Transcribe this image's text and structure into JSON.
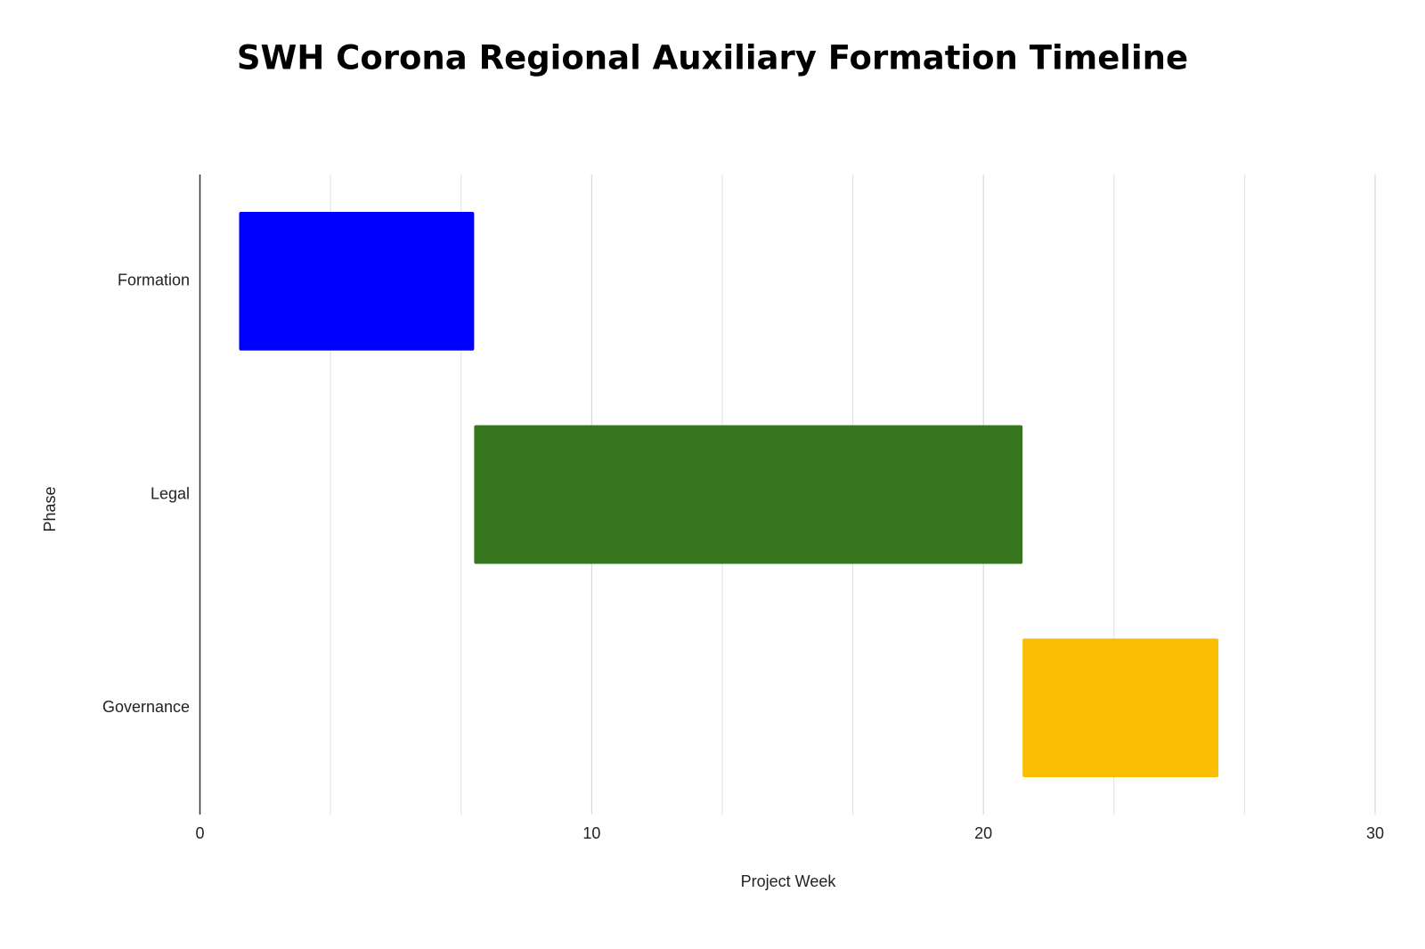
{
  "chart_data": {
    "type": "gantt",
    "title": "SWH Corona Regional Auxiliary Formation Timeline",
    "x_label": "Project Week",
    "y_label": "Phase",
    "categories": [
      "Formation",
      "Legal",
      "Governance"
    ],
    "start": [
      1,
      7,
      21
    ],
    "end": [
      7,
      21,
      26
    ],
    "colors": [
      "#0000ff",
      "#38761d",
      "#fbbc04"
    ],
    "xlim": [
      0,
      30
    ],
    "xticks": [
      0,
      10,
      20,
      30
    ],
    "x_minor_divisions": 3,
    "grid": true
  }
}
